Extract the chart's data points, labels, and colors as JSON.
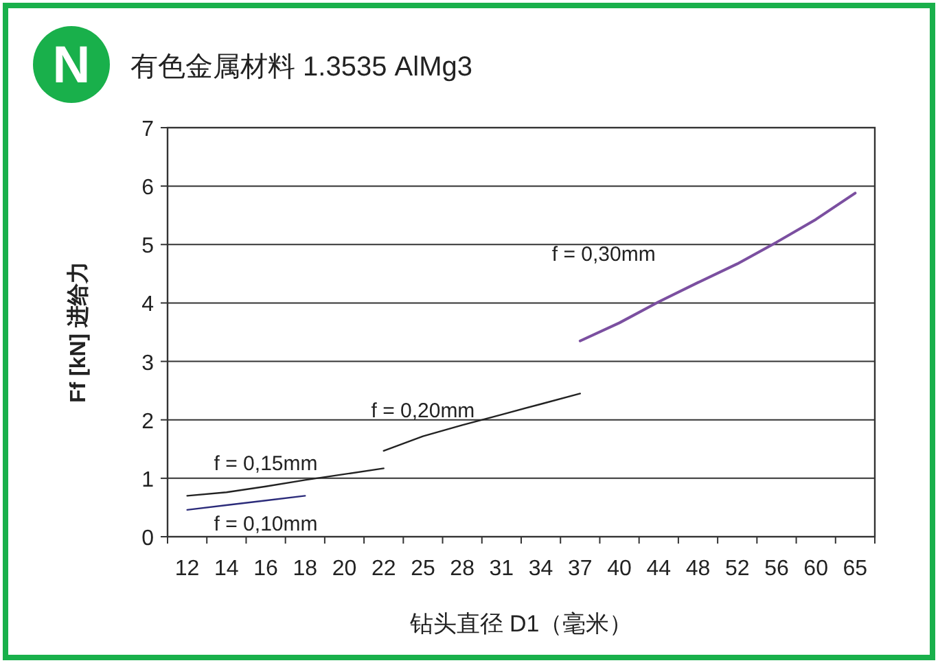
{
  "chart_data": {
    "type": "line",
    "title": "有色金属材料 1.3535 AlMg3",
    "xlabel": "钻头直径 D1（毫米）",
    "ylabel": "Ff [kN] 进给力",
    "annotations": [
      "N"
    ],
    "categories": [
      "12",
      "14",
      "16",
      "18",
      "20",
      "22",
      "25",
      "28",
      "31",
      "34",
      "37",
      "40",
      "44",
      "48",
      "52",
      "56",
      "60",
      "65"
    ],
    "series": [
      {
        "name": "f = 0,10mm",
        "color": "#2b2b7a",
        "values": [
          0.46,
          0.54,
          0.62,
          0.7,
          null,
          null,
          null,
          null,
          null,
          null,
          null,
          null,
          null,
          null,
          null,
          null,
          null,
          null
        ]
      },
      {
        "name": "f = 0,15mm",
        "color": "#222222",
        "values": [
          0.7,
          0.76,
          0.86,
          0.97,
          1.07,
          1.17,
          null,
          null,
          null,
          null,
          null,
          null,
          null,
          null,
          null,
          null,
          null,
          null
        ]
      },
      {
        "name": "f = 0,20mm",
        "color": "#222222",
        "values": [
          null,
          null,
          null,
          null,
          null,
          1.47,
          1.72,
          1.91,
          2.09,
          2.27,
          2.45,
          null,
          null,
          null,
          null,
          null,
          null,
          null
        ]
      },
      {
        "name": "f = 0,30mm",
        "color": "#7b4fa0",
        "values": [
          null,
          null,
          null,
          null,
          null,
          null,
          null,
          null,
          null,
          null,
          3.35,
          3.66,
          4.02,
          4.35,
          4.67,
          5.04,
          5.43,
          5.88
        ]
      }
    ],
    "ylim": [
      0,
      7
    ],
    "yticks": [
      0,
      1,
      2,
      3,
      4,
      5,
      6,
      7
    ],
    "grid": "y",
    "line_style": "solid",
    "marker": "none"
  }
}
